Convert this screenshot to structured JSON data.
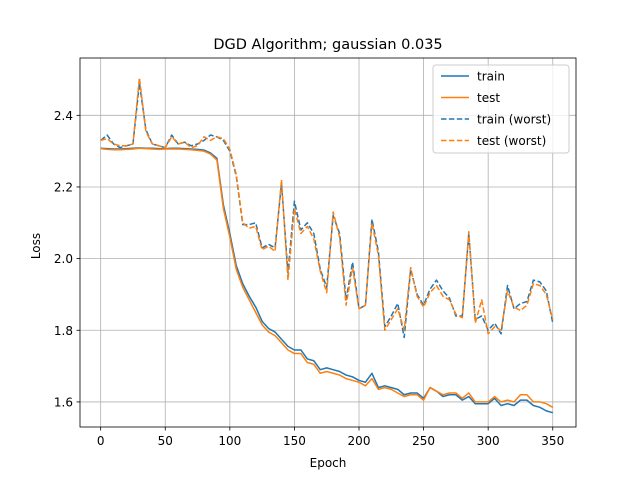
{
  "chart_data": {
    "type": "line",
    "title": "DGD Algorithm; gaussian 0.035",
    "xlabel": "Epoch",
    "ylabel": "Loss",
    "xlim": [
      -16,
      368
    ],
    "ylim": [
      1.53,
      2.56
    ],
    "xticks": [
      0,
      50,
      100,
      150,
      200,
      250,
      300,
      350
    ],
    "yticks": [
      1.6,
      1.8,
      2.0,
      2.2,
      2.4
    ],
    "xtick_labels": [
      "0",
      "50",
      "100",
      "150",
      "200",
      "250",
      "300",
      "350"
    ],
    "ytick_labels": [
      "1.6",
      "1.8",
      "2.0",
      "2.2",
      "2.4"
    ],
    "grid": true,
    "legend_position": "top-right",
    "colors": {
      "blue": "#1f77b4",
      "orange": "#ff7f0e"
    },
    "series": [
      {
        "name": "train",
        "color": "#1f77b4",
        "dash": "solid",
        "x": [
          0,
          5,
          10,
          15,
          20,
          25,
          30,
          35,
          40,
          45,
          50,
          55,
          60,
          65,
          70,
          75,
          80,
          85,
          90,
          95,
          100,
          105,
          110,
          115,
          120,
          125,
          130,
          135,
          140,
          145,
          150,
          155,
          160,
          165,
          170,
          175,
          180,
          185,
          190,
          195,
          200,
          205,
          210,
          215,
          220,
          225,
          230,
          235,
          240,
          245,
          250,
          255,
          260,
          265,
          270,
          275,
          280,
          285,
          290,
          295,
          300,
          305,
          310,
          315,
          320,
          325,
          330,
          335,
          340,
          345,
          350
        ],
        "y": [
          2.308,
          2.307,
          2.306,
          2.306,
          2.307,
          2.308,
          2.309,
          2.308,
          2.308,
          2.307,
          2.307,
          2.308,
          2.308,
          2.307,
          2.306,
          2.305,
          2.303,
          2.295,
          2.28,
          2.15,
          2.07,
          1.98,
          1.93,
          1.895,
          1.865,
          1.825,
          1.805,
          1.795,
          1.775,
          1.755,
          1.745,
          1.745,
          1.72,
          1.715,
          1.69,
          1.695,
          1.69,
          1.685,
          1.675,
          1.67,
          1.66,
          1.655,
          1.68,
          1.64,
          1.645,
          1.64,
          1.635,
          1.62,
          1.625,
          1.625,
          1.61,
          1.64,
          1.63,
          1.615,
          1.62,
          1.62,
          1.605,
          1.615,
          1.595,
          1.595,
          1.595,
          1.61,
          1.59,
          1.595,
          1.59,
          1.605,
          1.605,
          1.59,
          1.585,
          1.575,
          1.57
        ]
      },
      {
        "name": "test",
        "color": "#ff7f0e",
        "dash": "solid",
        "x": [
          0,
          5,
          10,
          15,
          20,
          25,
          30,
          35,
          40,
          45,
          50,
          55,
          60,
          65,
          70,
          75,
          80,
          85,
          90,
          95,
          100,
          105,
          110,
          115,
          120,
          125,
          130,
          135,
          140,
          145,
          150,
          155,
          160,
          165,
          170,
          175,
          180,
          185,
          190,
          195,
          200,
          205,
          210,
          215,
          220,
          225,
          230,
          235,
          240,
          245,
          250,
          255,
          260,
          265,
          270,
          275,
          280,
          285,
          290,
          295,
          300,
          305,
          310,
          315,
          320,
          325,
          330,
          335,
          340,
          345,
          350
        ],
        "y": [
          2.307,
          2.305,
          2.304,
          2.304,
          2.305,
          2.306,
          2.308,
          2.307,
          2.306,
          2.305,
          2.306,
          2.306,
          2.306,
          2.305,
          2.304,
          2.302,
          2.3,
          2.292,
          2.275,
          2.14,
          2.06,
          1.97,
          1.92,
          1.885,
          1.85,
          1.815,
          1.795,
          1.785,
          1.765,
          1.745,
          1.735,
          1.735,
          1.71,
          1.705,
          1.68,
          1.685,
          1.68,
          1.675,
          1.665,
          1.66,
          1.655,
          1.645,
          1.665,
          1.635,
          1.64,
          1.635,
          1.625,
          1.615,
          1.62,
          1.62,
          1.605,
          1.64,
          1.63,
          1.62,
          1.625,
          1.625,
          1.61,
          1.625,
          1.6,
          1.6,
          1.6,
          1.615,
          1.6,
          1.605,
          1.6,
          1.62,
          1.62,
          1.6,
          1.6,
          1.595,
          1.585
        ]
      },
      {
        "name": "train (worst)",
        "color": "#1f77b4",
        "dash": "dashed",
        "x": [
          0,
          5,
          10,
          15,
          20,
          25,
          30,
          35,
          40,
          45,
          50,
          55,
          60,
          65,
          70,
          75,
          80,
          85,
          90,
          95,
          100,
          105,
          110,
          115,
          120,
          125,
          130,
          135,
          140,
          145,
          150,
          155,
          160,
          165,
          170,
          175,
          180,
          185,
          190,
          195,
          200,
          205,
          210,
          215,
          220,
          225,
          230,
          235,
          240,
          245,
          250,
          255,
          260,
          265,
          270,
          275,
          280,
          285,
          290,
          295,
          300,
          305,
          310,
          315,
          320,
          325,
          330,
          335,
          340,
          345,
          350
        ],
        "y": [
          2.33,
          2.345,
          2.32,
          2.31,
          2.315,
          2.32,
          2.49,
          2.36,
          2.32,
          2.315,
          2.31,
          2.345,
          2.32,
          2.325,
          2.315,
          2.32,
          2.33,
          2.345,
          2.34,
          2.33,
          2.3,
          2.23,
          2.095,
          2.095,
          2.1,
          2.03,
          2.04,
          2.03,
          2.21,
          1.96,
          2.16,
          2.08,
          2.1,
          2.07,
          1.97,
          1.92,
          2.12,
          2.07,
          1.885,
          1.99,
          1.86,
          1.87,
          2.11,
          2.02,
          1.81,
          1.84,
          1.875,
          1.78,
          1.97,
          1.9,
          1.87,
          1.915,
          1.94,
          1.91,
          1.89,
          1.84,
          1.84,
          2.07,
          1.83,
          1.84,
          1.8,
          1.82,
          1.79,
          1.925,
          1.86,
          1.875,
          1.88,
          1.94,
          1.935,
          1.91,
          1.82
        ]
      },
      {
        "name": "test (worst)",
        "color": "#ff7f0e",
        "dash": "dashed",
        "x": [
          0,
          5,
          10,
          15,
          20,
          25,
          30,
          35,
          40,
          45,
          50,
          55,
          60,
          65,
          70,
          75,
          80,
          85,
          90,
          95,
          100,
          105,
          110,
          115,
          120,
          125,
          130,
          135,
          140,
          145,
          150,
          155,
          160,
          165,
          170,
          175,
          180,
          185,
          190,
          195,
          200,
          205,
          210,
          215,
          220,
          225,
          230,
          235,
          240,
          245,
          250,
          255,
          260,
          265,
          270,
          275,
          280,
          285,
          290,
          295,
          300,
          305,
          310,
          315,
          320,
          325,
          330,
          335,
          340,
          345,
          350
        ],
        "y": [
          2.33,
          2.335,
          2.32,
          2.315,
          2.315,
          2.32,
          2.505,
          2.355,
          2.32,
          2.315,
          2.31,
          2.34,
          2.32,
          2.325,
          2.31,
          2.315,
          2.34,
          2.33,
          2.34,
          2.335,
          2.305,
          2.235,
          2.1,
          2.085,
          2.09,
          2.025,
          2.035,
          2.02,
          2.22,
          1.94,
          2.14,
          2.07,
          2.09,
          2.055,
          1.965,
          1.905,
          2.13,
          2.06,
          1.87,
          1.975,
          1.86,
          1.87,
          2.1,
          2.01,
          1.8,
          1.83,
          1.86,
          1.8,
          1.975,
          1.895,
          1.865,
          1.905,
          1.925,
          1.895,
          1.885,
          1.845,
          1.835,
          2.075,
          1.82,
          1.885,
          1.79,
          1.81,
          1.8,
          1.91,
          1.865,
          1.855,
          1.87,
          1.93,
          1.925,
          1.9,
          1.83
        ]
      }
    ]
  }
}
